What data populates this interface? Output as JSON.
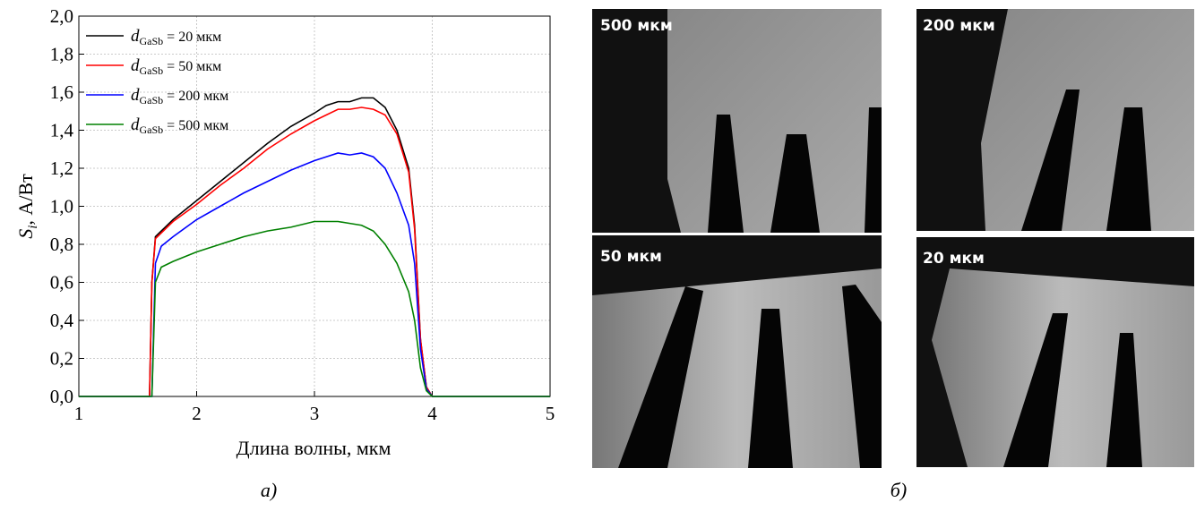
{
  "chart_data": {
    "type": "line",
    "y_label": "Si, А/Вт",
    "x_label": "Длина волны, мкм",
    "x": [
      1,
      1.6,
      1.62,
      1.65,
      1.7,
      1.8,
      2,
      2.2,
      2.4,
      2.6,
      2.8,
      3,
      3.1,
      3.2,
      3.3,
      3.4,
      3.5,
      3.6,
      3.7,
      3.8,
      3.85,
      3.9,
      3.95,
      4.0,
      5
    ],
    "series": [
      {
        "name": "dGaSb = 20 мкм",
        "color": "#000000",
        "values": [
          0,
          0,
          0.6,
          0.84,
          0.87,
          0.93,
          1.03,
          1.13,
          1.23,
          1.33,
          1.42,
          1.49,
          1.53,
          1.55,
          1.55,
          1.57,
          1.57,
          1.52,
          1.4,
          1.2,
          0.9,
          0.3,
          0.05,
          0,
          0
        ]
      },
      {
        "name": "dGaSb = 50 мкм",
        "color": "#ff0000",
        "values": [
          0,
          0,
          0.6,
          0.83,
          0.86,
          0.92,
          1.01,
          1.11,
          1.2,
          1.3,
          1.38,
          1.45,
          1.48,
          1.51,
          1.51,
          1.52,
          1.51,
          1.48,
          1.38,
          1.18,
          0.88,
          0.3,
          0.05,
          0,
          0
        ]
      },
      {
        "name": "dGaSb = 200 мкм",
        "color": "#0000ff",
        "values": [
          0,
          0,
          0,
          0.7,
          0.79,
          0.84,
          0.93,
          1.0,
          1.07,
          1.13,
          1.19,
          1.24,
          1.26,
          1.28,
          1.27,
          1.28,
          1.26,
          1.2,
          1.07,
          0.9,
          0.7,
          0.25,
          0.04,
          0,
          0
        ]
      },
      {
        "name": "dGaSb = 500 мкм",
        "color": "#008000",
        "values": [
          0,
          0,
          0,
          0.6,
          0.68,
          0.71,
          0.76,
          0.8,
          0.84,
          0.87,
          0.89,
          0.92,
          0.92,
          0.92,
          0.91,
          0.9,
          0.87,
          0.8,
          0.7,
          0.55,
          0.4,
          0.15,
          0.03,
          0,
          0
        ]
      }
    ],
    "xlim": [
      1,
      5
    ],
    "xticks": [
      1,
      2,
      3,
      4,
      5
    ],
    "ylim": [
      0,
      2
    ],
    "yticks": [
      {
        "value": 0,
        "label": "0,0"
      },
      {
        "value": 0.2,
        "label": "0,2"
      },
      {
        "value": 0.4,
        "label": "0,4"
      },
      {
        "value": 0.6,
        "label": "0,6"
      },
      {
        "value": 0.8,
        "label": "0,8"
      },
      {
        "value": 1,
        "label": "1,0"
      },
      {
        "value": 1.2,
        "label": "1,2"
      },
      {
        "value": 1.4,
        "label": "1,4"
      },
      {
        "value": 1.6,
        "label": "1,6"
      },
      {
        "value": 1.8,
        "label": "1,8"
      },
      {
        "value": 2,
        "label": "2,0"
      }
    ],
    "grid": true,
    "legend": "upper left"
  },
  "captions": {
    "a": "а)",
    "b": "б)"
  },
  "images": [
    {
      "label": "500 мкм"
    },
    {
      "label": "200 мкм"
    },
    {
      "label": "50 мкм"
    },
    {
      "label": "20 мкм"
    }
  ]
}
